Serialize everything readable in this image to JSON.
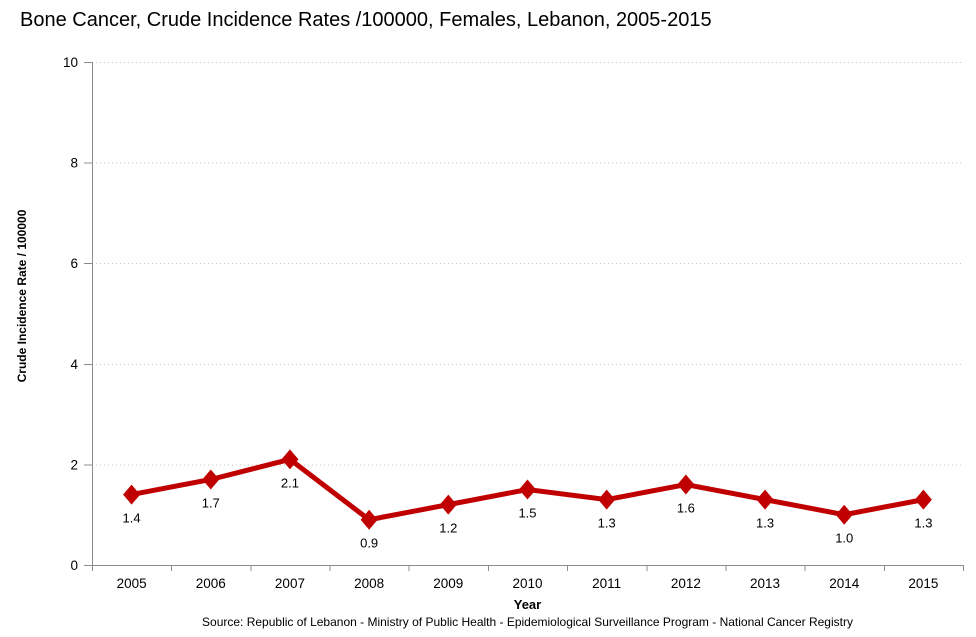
{
  "chart_data": {
    "type": "line",
    "title": "Bone Cancer, Crude Incidence Rates /100000, Females, Lebanon, 2005-2015",
    "categories": [
      "2005",
      "2006",
      "2007",
      "2008",
      "2009",
      "2010",
      "2011",
      "2012",
      "2013",
      "2014",
      "2015"
    ],
    "values": [
      1.4,
      1.7,
      2.1,
      0.9,
      1.2,
      1.5,
      1.3,
      1.6,
      1.3,
      1.0,
      1.3
    ],
    "data_labels": [
      "1.4",
      "1.7",
      "2.1",
      "0.9",
      "1.2",
      "1.5",
      "1.3",
      "1.6",
      "1.3",
      "1.0",
      "1.3"
    ],
    "xlabel": "Year",
    "ylabel": "Crude Incidence Rate / 100000",
    "ylim": [
      0,
      10
    ],
    "y_ticks": [
      0,
      2,
      4,
      6,
      8,
      10
    ],
    "grid": "horizontal-dotted",
    "legend": "none",
    "marker": "diamond"
  },
  "theme": {
    "series_color": "#C00000",
    "axis_color": "#8C8C8C",
    "gridline_color": "#C6C6C2",
    "text_color": "#000000"
  },
  "footer": {
    "source": "Source: Republic of Lebanon - Ministry of Public Health - Epidemiological Surveillance Program - National Cancer Registry"
  }
}
